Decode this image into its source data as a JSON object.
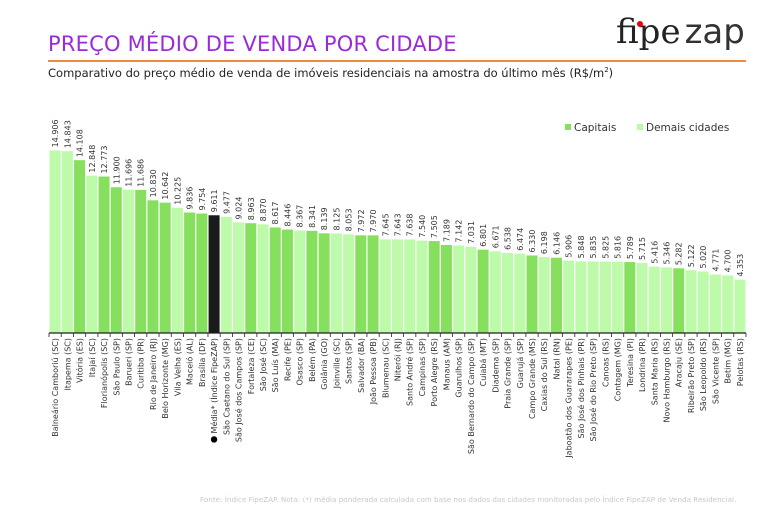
{
  "header": {
    "title": "PREÇO MÉDIO DE VENDA POR CIDADE",
    "subtitle": "Comparativo do preço médio de venda de imóveis residenciais na amostra do último mês (R$/m",
    "subtitle_sup": "2",
    "subtitle_end": ")",
    "logo_text": "fipezap",
    "logo_part1": "fipe",
    "logo_part2": "zap"
  },
  "footer": "Fonte: Índice FipeZAP. Nota: (*) média ponderada calculada com base nos dados das cidades monitoradas pelo Índice FipeZAP de Venda Residencial.",
  "colors": {
    "capital": "#86e05e",
    "other": "#bdfaa9",
    "average": "#1a1a1a",
    "title": "#9a2bd8",
    "rule": "#f08a3e"
  },
  "chart_data": {
    "type": "bar",
    "title": "PREÇO MÉDIO DE VENDA POR CIDADE",
    "ylabel": "",
    "ylim": [
      0,
      15000
    ],
    "grid": false,
    "legend": {
      "placement": "top-right",
      "entries": [
        {
          "name": "Capitais",
          "group": "capital"
        },
        {
          "name": "Demais cidades",
          "group": "other"
        }
      ]
    },
    "categories": [
      "Balneário Camboriú (SC)",
      "Itapema (SC)",
      "Vitória (ES)",
      "Itajaí (SC)",
      "Florianópolis (SC)",
      "São Paulo (SP)",
      "Barueri (SP)",
      "Curitiba (PR)",
      "Rio de Janeiro (RJ)",
      "Belo Horizonte (MG)",
      "Vila Velha (ES)",
      "Maceió (AL)",
      "Brasília (DF)",
      "Média* (Índice FipeZAP)",
      "São Caetano do Sul (SP)",
      "São José dos Campos (SP)",
      "Fortaleza (CE)",
      "São José (SC)",
      "São Luís (MA)",
      "Recife (PE)",
      "Osasco (SP)",
      "Belém (PA)",
      "Goiânia (GO)",
      "Joinville (SC)",
      "Santos (SP)",
      "Salvador (BA)",
      "João Pessoa (PB)",
      "Blumenau (SC)",
      "Niterói (RJ)",
      "Santo André (SP)",
      "Campinas (SP)",
      "Porto Alegre (RS)",
      "Manaus (AM)",
      "Guarulhos (SP)",
      "São Bernardo do Campo (SP)",
      "Cuiabá (MT)",
      "Diadema (SP)",
      "Praia Grande (SP)",
      "Guarujá (SP)",
      "Campo Grande (MS)",
      "Caxias do Sul (RS)",
      "Natal (RN)",
      "Jaboatão dos Guararapes (PE)",
      "São José dos Pinhais (PR)",
      "São José do Rio Preto (SP)",
      "Canoas (RS)",
      "Contagem (MG)",
      "Teresina (PI)",
      "Londrina (PR)",
      "Santa Maria (RS)",
      "Novo Hamburgo (RS)",
      "Aracaju (SE)",
      "Ribeirão Preto (SP)",
      "São Leopoldo (RS)",
      "São Vicente (SP)",
      "Betim (MG)",
      "Pelotas (RS)"
    ],
    "values": [
      14906,
      14843,
      14108,
      12848,
      12773,
      11900,
      11696,
      11686,
      10830,
      10642,
      10225,
      9836,
      9754,
      9611,
      9477,
      9024,
      8963,
      8870,
      8617,
      8446,
      8367,
      8341,
      8139,
      8125,
      8053,
      7972,
      7970,
      7645,
      7643,
      7638,
      7540,
      7505,
      7189,
      7142,
      7031,
      6801,
      6671,
      6538,
      6474,
      6330,
      6198,
      6146,
      5906,
      5848,
      5835,
      5825,
      5816,
      5789,
      5715,
      5416,
      5346,
      5282,
      5122,
      5020,
      4771,
      4700,
      4353
    ],
    "data_labels": [
      "14.906",
      "14.843",
      "14.108",
      "12.848",
      "12.773",
      "11.900",
      "11.696",
      "11.686",
      "10.830",
      "10.642",
      "10.225",
      "9.836",
      "9.754",
      "9.611",
      "9.477",
      "9.024",
      "8.963",
      "8.870",
      "8.617",
      "8.446",
      "8.367",
      "8.341",
      "8.139",
      "8.125",
      "8.053",
      "7.972",
      "7.970",
      "7.645",
      "7.643",
      "7.638",
      "7.540",
      "7.505",
      "7.189",
      "7.142",
      "7.031",
      "6.801",
      "6.671",
      "6.538",
      "6.474",
      "6.330",
      "6.198",
      "6.146",
      "5.906",
      "5.848",
      "5.835",
      "5.825",
      "5.816",
      "5.789",
      "5.715",
      "5.416",
      "5.346",
      "5.282",
      "5.122",
      "5.020",
      "4.771",
      "4.700",
      "4.353"
    ],
    "groups": [
      "other",
      "other",
      "capital",
      "other",
      "capital",
      "capital",
      "other",
      "capital",
      "capital",
      "capital",
      "other",
      "capital",
      "capital",
      "average",
      "other",
      "other",
      "capital",
      "other",
      "capital",
      "capital",
      "other",
      "capital",
      "capital",
      "other",
      "other",
      "capital",
      "capital",
      "other",
      "other",
      "other",
      "other",
      "capital",
      "capital",
      "other",
      "other",
      "capital",
      "other",
      "other",
      "other",
      "capital",
      "other",
      "capital",
      "other",
      "other",
      "other",
      "other",
      "other",
      "capital",
      "other",
      "other",
      "other",
      "capital",
      "other",
      "other",
      "other",
      "other",
      "other"
    ]
  }
}
